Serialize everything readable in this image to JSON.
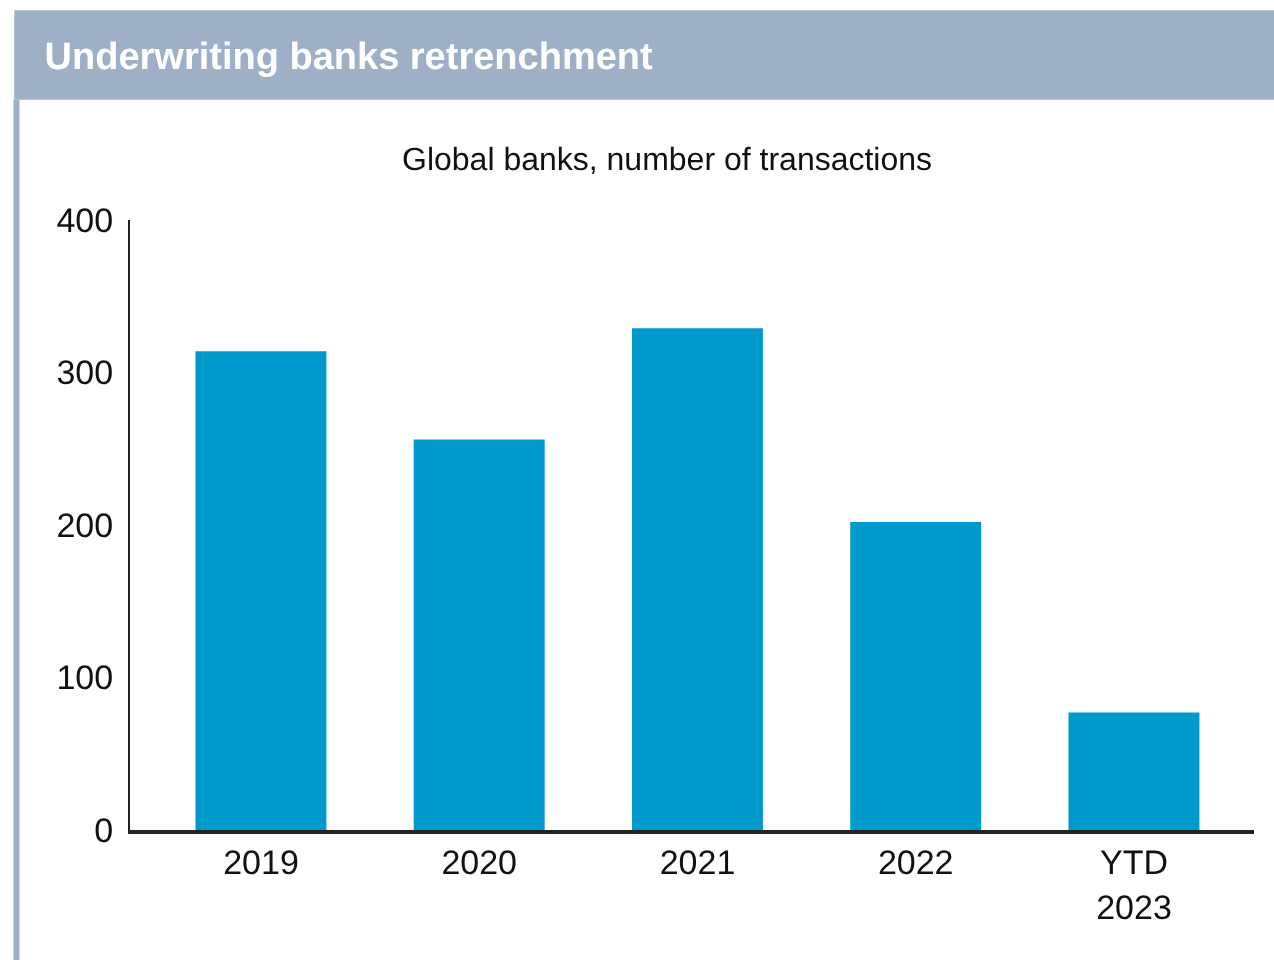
{
  "chart_data": {
    "type": "bar",
    "title": "Underwriting banks retrenchment",
    "subtitle": "Global banks, number of transactions",
    "categories": [
      "2019",
      "2020",
      "2021",
      "2022",
      "YTD\n2023"
    ],
    "values": [
      314,
      256,
      329,
      202,
      77
    ],
    "color": "#0099cc",
    "ylim": [
      0,
      400
    ],
    "yticks": [
      0,
      100,
      200,
      300,
      400
    ],
    "grid": false
  }
}
